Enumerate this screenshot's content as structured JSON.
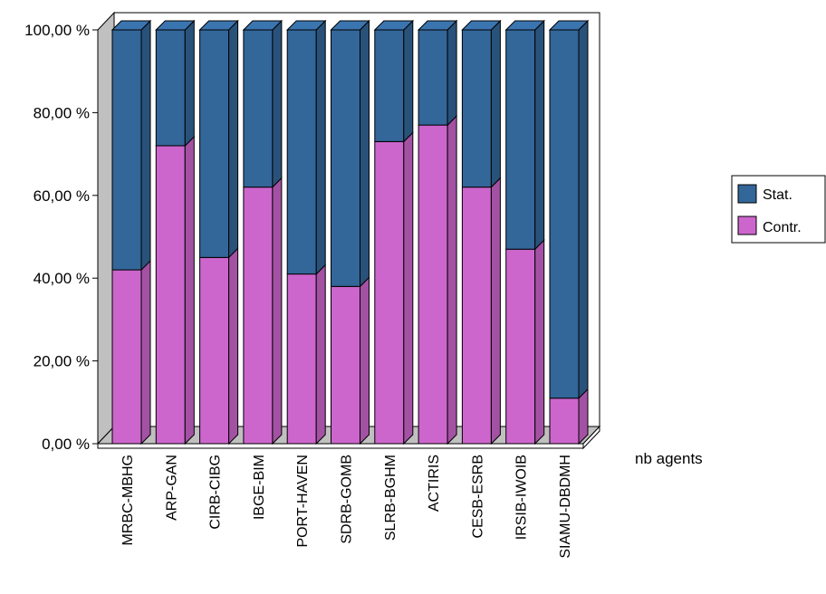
{
  "chart_data": {
    "type": "bar",
    "stacked": true,
    "percent": true,
    "three_d": true,
    "categories": [
      "MRBC-MBHG",
      "ARP-GAN",
      "CIRB-CIBG",
      "IBGE-BIM",
      "PORT-HAVEN",
      "SDRB-GOMB",
      "SLRB-BGHM",
      "ACTIRIS",
      "CESB-ESRB",
      "IRSIB-IWOIB",
      "SIAMU-DBDMH"
    ],
    "series": [
      {
        "name": "Contr.",
        "color": "#cc66cc",
        "values": [
          42,
          72,
          45,
          62,
          41,
          38,
          73,
          77,
          62,
          47,
          11
        ]
      },
      {
        "name": "Stat.",
        "color": "#336699",
        "values": [
          58,
          28,
          55,
          38,
          59,
          62,
          27,
          23,
          38,
          53,
          89
        ]
      }
    ],
    "yticks": [
      "0,00 %",
      "20,00 %",
      "40,00 %",
      "60,00 %",
      "80,00 %",
      "100,00 %"
    ],
    "ylim": [
      0,
      100
    ],
    "xlabel": "nb agents",
    "ylabel": "",
    "title": "",
    "legend_position": "right",
    "legend_order": [
      "Stat.",
      "Contr."
    ],
    "grid": false
  }
}
